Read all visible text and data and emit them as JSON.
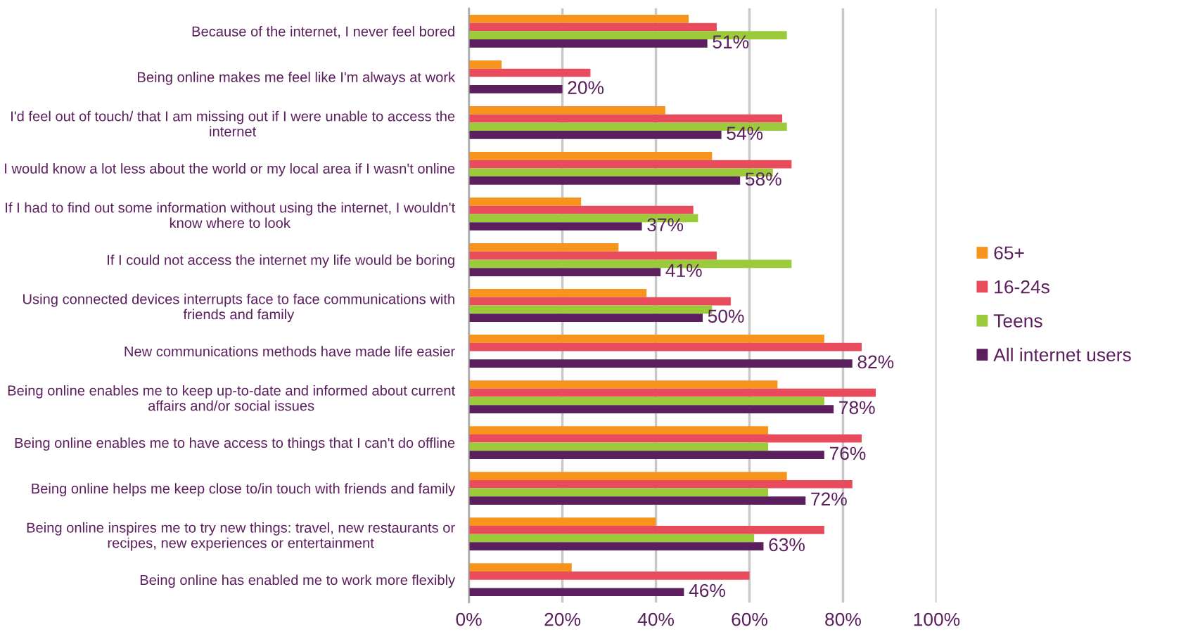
{
  "chart_data": {
    "type": "bar",
    "orientation": "horizontal",
    "categories": [
      "Because of the internet, I never feel bored",
      "Being online makes me feel like I'm always at work",
      "I'd feel out of touch/ that I am missing out if I were unable to access the internet",
      "I would know a lot less about the world or my local area if I wasn't online",
      "If I had to find out some information without using the internet, I wouldn't know where to look",
      "If I could not access the internet my life would be boring",
      "Using connected devices interrupts face to face communications with friends and family",
      "New communications methods have made life easier",
      "Being online enables me to keep up-to-date and informed about current affairs and/or social issues",
      "Being online enables me to have access to things that I can't do offline",
      "Being online helps me keep close to/in touch with friends and family",
      "Being online inspires me to try new things: travel, new restaurants or recipes, new experiences or entertainment",
      "Being online has enabled me to work more flexibly"
    ],
    "series": [
      {
        "name": "65+",
        "color": "#f7941d",
        "values": [
          47,
          7,
          42,
          52,
          24,
          32,
          38,
          76,
          66,
          64,
          68,
          40,
          22
        ]
      },
      {
        "name": "16-24s",
        "color": "#e84c5c",
        "values": [
          53,
          26,
          67,
          69,
          48,
          53,
          56,
          84,
          87,
          84,
          82,
          76,
          60
        ]
      },
      {
        "name": "Teens",
        "color": "#9bcb3b",
        "values": [
          68,
          null,
          68,
          65,
          49,
          69,
          52,
          null,
          76,
          64,
          64,
          61,
          null
        ]
      },
      {
        "name": "All internet users",
        "color": "#5c1f5e",
        "values": [
          51,
          20,
          54,
          58,
          37,
          41,
          50,
          82,
          78,
          76,
          72,
          63,
          46
        ],
        "value_labels": [
          "51%",
          "20%",
          "54%",
          "58%",
          "37%",
          "41%",
          "50%",
          "82%",
          "78%",
          "76%",
          "72%",
          "63%",
          "46%"
        ]
      }
    ],
    "xlim": [
      0,
      100
    ],
    "xticks": [
      {
        "value": 0,
        "label": "0%"
      },
      {
        "value": 20,
        "label": "20%"
      },
      {
        "value": 40,
        "label": "40%"
      },
      {
        "value": 60,
        "label": "60%"
      },
      {
        "value": 80,
        "label": "80%"
      },
      {
        "value": 100,
        "label": "100%"
      }
    ],
    "grid": "x",
    "legend": "right"
  }
}
